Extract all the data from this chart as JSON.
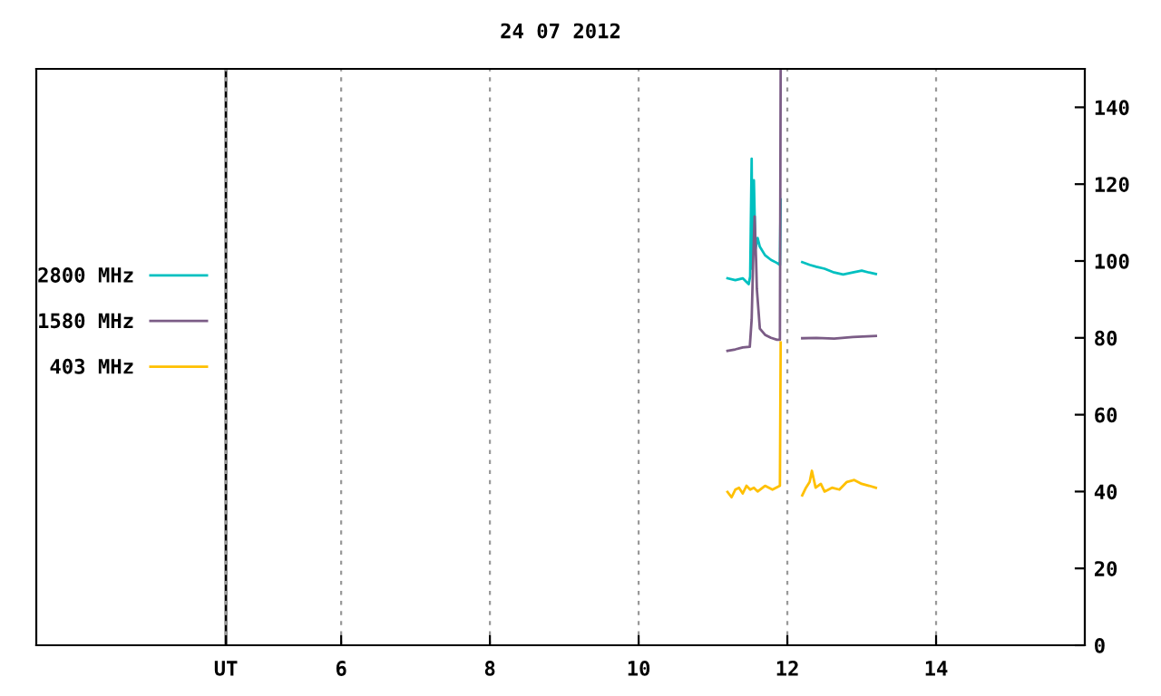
{
  "chart_data": {
    "type": "line",
    "title": "24 07 2012",
    "xlim": [
      1.9,
      16
    ],
    "xticks": [
      {
        "value": 4.45,
        "label": "UT"
      },
      6,
      8,
      10,
      12,
      14
    ],
    "ylim": [
      0,
      150
    ],
    "yticks": [
      0,
      20,
      40,
      60,
      80,
      100,
      120,
      140
    ],
    "grid": "x",
    "legend": "left",
    "line_style": "solid",
    "marker": "none",
    "ref_lines": [
      {
        "axis": "x",
        "value": 4.45,
        "color": "#000000"
      }
    ],
    "series": [
      {
        "name": "2800 MHz",
        "color": "#00c0c0",
        "x": [
          11.195,
          11.3,
          11.4,
          11.48,
          11.5,
          11.52,
          11.53,
          11.55,
          11.57,
          11.6,
          11.63,
          11.7,
          11.78,
          11.86,
          11.9,
          11.91,
          11.915,
          12.2,
          12.3,
          12.39,
          12.5,
          12.63,
          12.75,
          12.88,
          13.0,
          13.1,
          13.19
        ],
        "values": [
          95.5,
          95,
          95.5,
          94,
          96,
          126.6,
          98,
          121,
          103,
          106,
          103.7,
          101.5,
          100.3,
          99.5,
          99,
          116,
          null,
          99.7,
          99,
          98.5,
          98,
          97,
          96.5,
          97,
          97.5,
          97,
          96.6
        ]
      },
      {
        "name": "1580 MHz",
        "color": "#7b5c86",
        "x": [
          11.195,
          11.3,
          11.4,
          11.495,
          11.52,
          11.54,
          11.56,
          11.58,
          11.59,
          11.63,
          11.7,
          11.78,
          11.86,
          11.9,
          11.91,
          11.915,
          12.2,
          12.39,
          12.63,
          12.88,
          13.19
        ],
        "values": [
          76.6,
          77,
          77.5,
          77.7,
          84.8,
          100,
          111.6,
          100,
          92.7,
          82.4,
          80.8,
          80,
          79.5,
          79.5,
          150,
          null,
          79.9,
          80,
          79.8,
          80.2,
          80.5
        ]
      },
      {
        "name": "403 MHz",
        "color": "#ffc000",
        "x": [
          11.195,
          11.25,
          11.3,
          11.35,
          11.4,
          11.45,
          11.5,
          11.55,
          11.6,
          11.7,
          11.8,
          11.9,
          11.91,
          11.915,
          12.2,
          12.25,
          12.3,
          12.33,
          12.38,
          12.45,
          12.5,
          12.6,
          12.7,
          12.8,
          12.9,
          13.0,
          13.1,
          13.19
        ],
        "values": [
          39.9,
          38.5,
          40.5,
          41,
          39.5,
          41.5,
          40.5,
          41,
          40,
          41.5,
          40.5,
          41.5,
          78.8,
          null,
          39,
          41,
          42.5,
          45.4,
          41,
          42,
          40,
          41,
          40.5,
          42.5,
          43,
          42,
          41.5,
          41
        ]
      }
    ]
  }
}
